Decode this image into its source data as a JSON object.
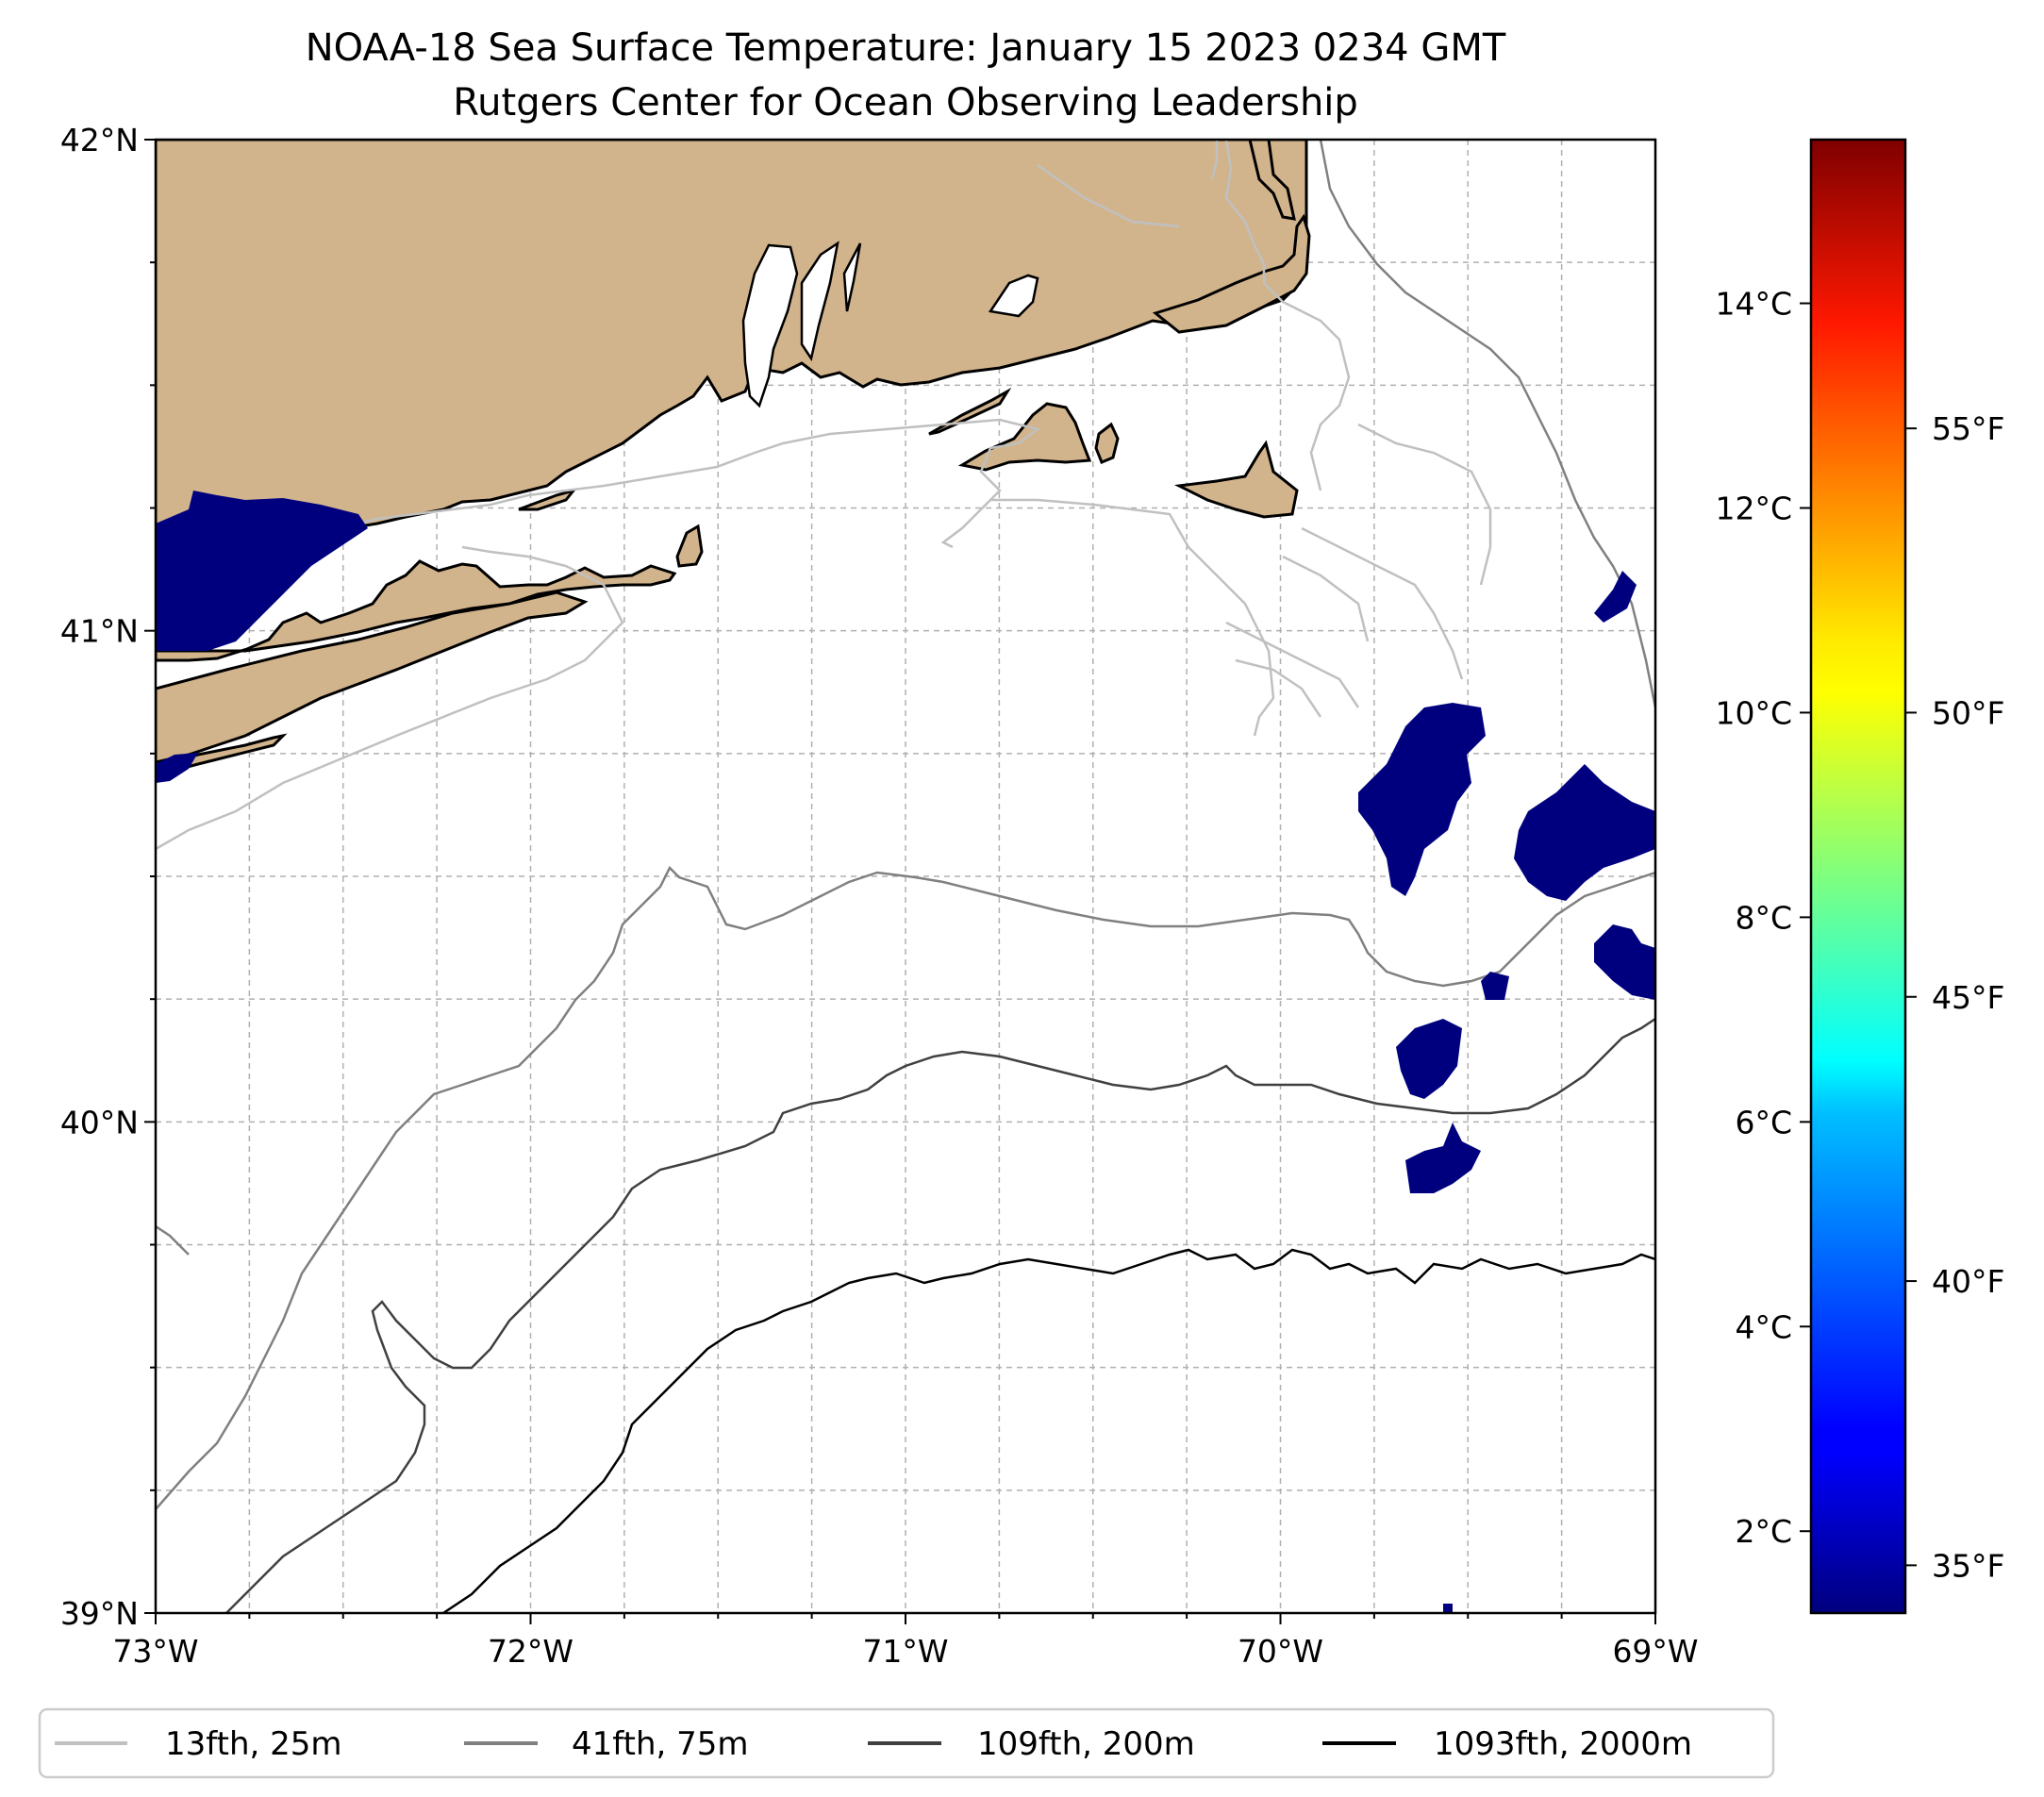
{
  "title": {
    "line1": "NOAA-18 Sea Surface Temperature: January 15 2023 0234 GMT",
    "line2": "Rutgers Center for Ocean Observing Leadership"
  },
  "map": {
    "lon_range": [
      -73,
      -69
    ],
    "lat_range": [
      39,
      42
    ],
    "x_ticks": [
      {
        "value": -73,
        "label": "73°W"
      },
      {
        "value": -72,
        "label": "72°W"
      },
      {
        "value": -71,
        "label": "71°W"
      },
      {
        "value": -70,
        "label": "70°W"
      },
      {
        "value": -69,
        "label": "69°W"
      }
    ],
    "y_ticks": [
      {
        "value": 42,
        "label": "42°N"
      },
      {
        "value": 41,
        "label": "41°N"
      },
      {
        "value": 40,
        "label": "40°N"
      },
      {
        "value": 39,
        "label": "39°N"
      }
    ],
    "land_color": "#d2b48c",
    "sst_patch_color": "#00007f",
    "grid": "dashed, every 0.25°"
  },
  "colorbar": {
    "celsius_ticks": [
      "14°C",
      "12°C",
      "10°C",
      "8°C",
      "6°C",
      "4°C",
      "2°C"
    ],
    "celsius_values": [
      14,
      12,
      10,
      8,
      6,
      4,
      2
    ],
    "fahrenheit_ticks": [
      "55°F",
      "50°F",
      "45°F",
      "40°F",
      "35°F"
    ],
    "fahrenheit_values": [
      55,
      50,
      45,
      40,
      35
    ],
    "range_celsius": [
      1.2,
      15.6
    ],
    "colormap": "jet"
  },
  "legend": {
    "items": [
      {
        "label": "13fth, 25m",
        "color": "#c0c0c0"
      },
      {
        "label": "41fth, 75m",
        "color": "#808080"
      },
      {
        "label": "109fth, 200m",
        "color": "#404040"
      },
      {
        "label": "1093fth, 2000m",
        "color": "#000000"
      }
    ]
  }
}
